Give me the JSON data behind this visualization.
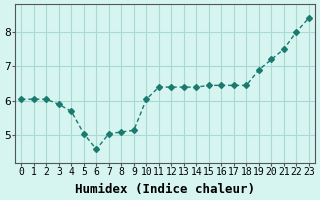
{
  "x": [
    0,
    1,
    2,
    3,
    4,
    5,
    6,
    7,
    8,
    9,
    10,
    11,
    12,
    13,
    14,
    15,
    16,
    17,
    18,
    19,
    20,
    21,
    22,
    23
  ],
  "y": [
    6.05,
    6.05,
    6.05,
    5.9,
    5.7,
    5.05,
    4.6,
    5.05,
    5.1,
    5.15,
    6.05,
    6.4,
    6.4,
    6.4,
    6.4,
    6.45,
    6.45,
    6.45,
    6.45,
    6.9,
    7.2,
    7.5,
    8.0,
    8.4
  ],
  "xlabel": "Humidex (Indice chaleur)",
  "ylim": [
    4.2,
    8.8
  ],
  "xlim": [
    -0.5,
    23.5
  ],
  "yticks": [
    5,
    6,
    7,
    8
  ],
  "xticks": [
    0,
    1,
    2,
    3,
    4,
    5,
    6,
    7,
    8,
    9,
    10,
    11,
    12,
    13,
    14,
    15,
    16,
    17,
    18,
    19,
    20,
    21,
    22,
    23
  ],
  "line_color": "#1a7a6e",
  "marker": "D",
  "marker_size": 3,
  "bg_color": "#d6f5f0",
  "grid_color": "#aad8d3",
  "xlabel_fontsize": 9,
  "tick_fontsize": 7
}
